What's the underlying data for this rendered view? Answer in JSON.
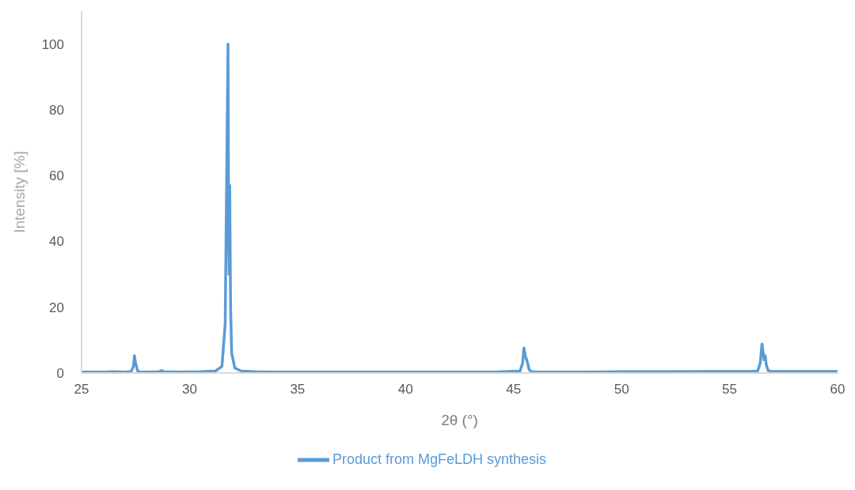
{
  "chart_data": {
    "type": "line",
    "xlabel": "2θ (°)",
    "ylabel": "Intensity [%]",
    "xlim": [
      25,
      60
    ],
    "xticks": [
      25,
      30,
      35,
      40,
      45,
      50,
      55,
      60
    ],
    "ylim": [
      0,
      110
    ],
    "yticks": [
      0,
      20,
      40,
      60,
      80,
      100
    ],
    "grid": false,
    "legend": "bottom",
    "marker": "none",
    "line_style": "solid",
    "series": [
      {
        "name": "Product from MgFeLDH synthesis",
        "color": "#5b9bd5",
        "x": [
          25,
          26,
          26.5,
          27,
          27.3,
          27.4,
          27.45,
          27.5,
          27.6,
          27.7,
          28,
          28.6,
          28.7,
          28.8,
          29.5,
          30.5,
          31.2,
          31.5,
          31.65,
          31.72,
          31.78,
          31.81,
          31.83,
          31.86,
          31.9,
          31.95,
          32.1,
          32.4,
          33,
          34,
          36,
          38,
          40,
          42,
          44,
          45.3,
          45.42,
          45.48,
          45.55,
          45.6,
          45.65,
          45.72,
          45.85,
          46.2,
          48,
          50,
          52,
          54,
          56,
          56.3,
          56.42,
          56.5,
          56.56,
          56.6,
          56.65,
          56.7,
          56.78,
          56.9,
          57.3,
          59,
          60
        ],
        "values": [
          0.3,
          0.3,
          0.4,
          0.3,
          0.5,
          2,
          5.3,
          3,
          0.6,
          0.3,
          0.3,
          0.4,
          0.8,
          0.4,
          0.3,
          0.4,
          0.6,
          2,
          15,
          60,
          100,
          40,
          30,
          57,
          20,
          6,
          1.5,
          0.6,
          0.4,
          0.3,
          0.3,
          0.3,
          0.3,
          0.3,
          0.3,
          0.6,
          3,
          7.6,
          5,
          4.2,
          3,
          1,
          0.4,
          0.3,
          0.3,
          0.4,
          0.4,
          0.5,
          0.5,
          0.6,
          3,
          8.8,
          6,
          4,
          5.3,
          2.5,
          0.8,
          0.5,
          0.5,
          0.5,
          0.5
        ]
      }
    ]
  }
}
